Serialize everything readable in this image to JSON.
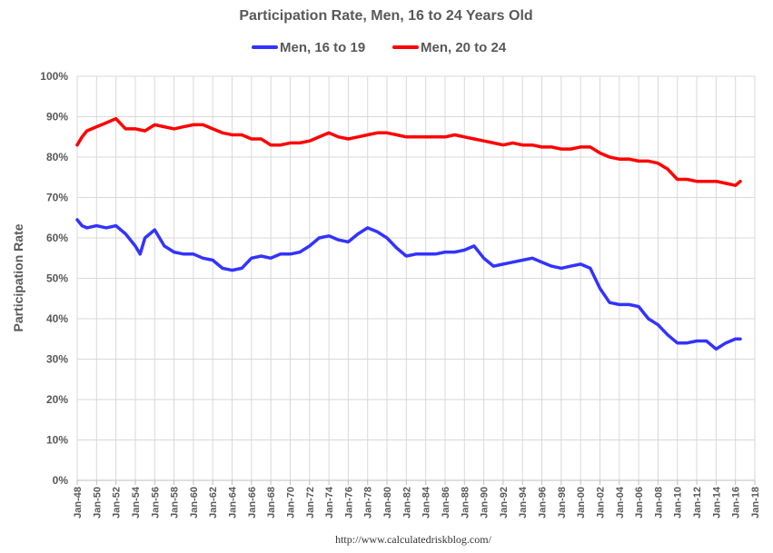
{
  "chart_data": {
    "type": "line",
    "title": "Participation Rate, Men, 16 to 24 Years Old",
    "xlabel": "",
    "ylabel": "Participation Rate",
    "ylim": [
      0,
      100
    ],
    "y_ticks": [
      "0%",
      "10%",
      "20%",
      "30%",
      "40%",
      "50%",
      "60%",
      "70%",
      "80%",
      "90%",
      "100%"
    ],
    "x_range": [
      1948,
      2018
    ],
    "x_ticks": [
      "Jan-48",
      "Jan-50",
      "Jan-52",
      "Jan-54",
      "Jan-56",
      "Jan-58",
      "Jan-60",
      "Jan-62",
      "Jan-64",
      "Jan-66",
      "Jan-68",
      "Jan-70",
      "Jan-72",
      "Jan-74",
      "Jan-76",
      "Jan-78",
      "Jan-80",
      "Jan-82",
      "Jan-84",
      "Jan-86",
      "Jan-88",
      "Jan-90",
      "Jan-92",
      "Jan-94",
      "Jan-96",
      "Jan-98",
      "Jan-00",
      "Jan-02",
      "Jan-04",
      "Jan-06",
      "Jan-08",
      "Jan-10",
      "Jan-12",
      "Jan-14",
      "Jan-16",
      "Jan-18"
    ],
    "legend_position": "top",
    "grid": true,
    "series": [
      {
        "name": "Men, 16 to 19",
        "color": "#3333ff",
        "x": [
          1948,
          1948.5,
          1949,
          1950,
          1951,
          1952,
          1953,
          1954,
          1954.5,
          1955,
          1956,
          1957,
          1958,
          1959,
          1960,
          1961,
          1962,
          1963,
          1964,
          1965,
          1966,
          1967,
          1968,
          1969,
          1970,
          1971,
          1972,
          1973,
          1974,
          1975,
          1976,
          1977,
          1978,
          1979,
          1980,
          1981,
          1982,
          1983,
          1984,
          1985,
          1986,
          1987,
          1988,
          1989,
          1990,
          1991,
          1992,
          1993,
          1994,
          1995,
          1996,
          1997,
          1998,
          1999,
          2000,
          2001,
          2002,
          2003,
          2004,
          2005,
          2006,
          2007,
          2008,
          2009,
          2010,
          2011,
          2012,
          2013,
          2014,
          2015,
          2016,
          2016.5
        ],
        "y": [
          64.5,
          63,
          62.5,
          63,
          62.5,
          63,
          61,
          58,
          56,
          60,
          62,
          58,
          56.5,
          56,
          56,
          55,
          54.5,
          52.5,
          52,
          52.5,
          55,
          55.5,
          55,
          56,
          56,
          56.5,
          58,
          60,
          60.5,
          59.5,
          59,
          61,
          62.5,
          61.5,
          60,
          57.5,
          55.5,
          56,
          56,
          56,
          56.5,
          56.5,
          57,
          58,
          55,
          53,
          53.5,
          54,
          54.5,
          55,
          54,
          53,
          52.5,
          53,
          53.5,
          52.5,
          47.5,
          44,
          43.5,
          43.5,
          43,
          40,
          38.5,
          36,
          34,
          34,
          34.5,
          34.5,
          32.5,
          34,
          35,
          35
        ]
      },
      {
        "name": "Men, 20 to 24",
        "color": "#ff0000",
        "x": [
          1948,
          1948.5,
          1949,
          1950,
          1951,
          1952,
          1953,
          1954,
          1955,
          1956,
          1957,
          1958,
          1959,
          1960,
          1961,
          1962,
          1963,
          1964,
          1965,
          1966,
          1967,
          1968,
          1969,
          1970,
          1971,
          1972,
          1973,
          1974,
          1975,
          1976,
          1977,
          1978,
          1979,
          1980,
          1981,
          1982,
          1983,
          1984,
          1985,
          1986,
          1987,
          1988,
          1989,
          1990,
          1991,
          1992,
          1993,
          1994,
          1995,
          1996,
          1997,
          1998,
          1999,
          2000,
          2001,
          2002,
          2003,
          2004,
          2005,
          2006,
          2007,
          2008,
          2009,
          2010,
          2011,
          2012,
          2013,
          2014,
          2015,
          2016,
          2016.5
        ],
        "y": [
          83,
          85,
          86.5,
          87.5,
          88.5,
          89.5,
          87,
          87,
          86.5,
          88,
          87.5,
          87,
          87.5,
          88,
          88,
          87,
          86,
          85.5,
          85.5,
          84.5,
          84.5,
          83,
          83,
          83.5,
          83.5,
          84,
          85,
          86,
          85,
          84.5,
          85,
          85.5,
          86,
          86,
          85.5,
          85,
          85,
          85,
          85,
          85,
          85.5,
          85,
          84.5,
          84,
          83.5,
          83,
          83.5,
          83,
          83,
          82.5,
          82.5,
          82,
          82,
          82.5,
          82.5,
          81,
          80,
          79.5,
          79.5,
          79,
          79,
          78.5,
          77,
          74.5,
          74.5,
          74,
          74,
          74,
          73.5,
          73,
          74
        ]
      }
    ]
  },
  "source_text": "http://www.calculatedriskblog.com/"
}
